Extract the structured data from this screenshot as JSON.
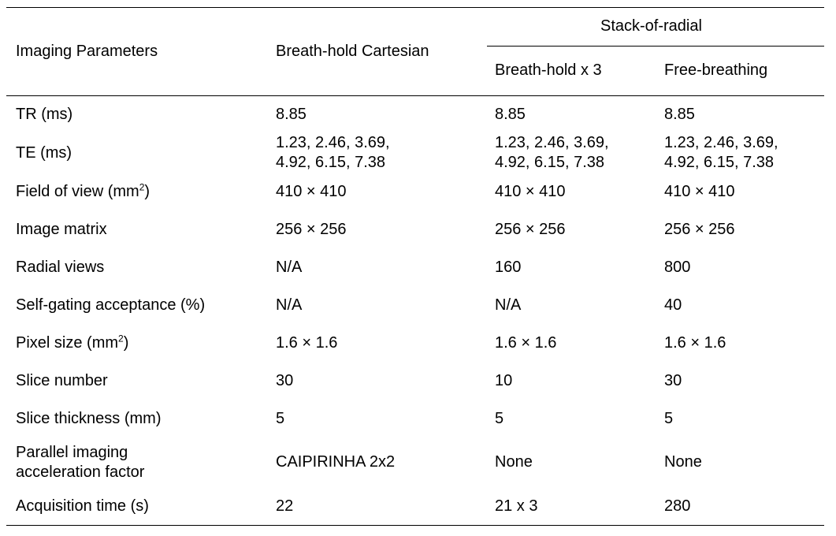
{
  "table": {
    "header": {
      "col0": "Imaging Parameters",
      "col1": "Breath-hold Cartesian",
      "group": "Stack-of-radial",
      "col2": "Breath-hold x 3",
      "col3": "Free-breathing"
    },
    "rows": [
      {
        "param": "TR (ms)",
        "c1": "8.85",
        "c2": "8.85",
        "c3": "8.85"
      },
      {
        "param": "TE (ms)",
        "c1a": "1.23, 2.46, 3.69,",
        "c1b": "4.92, 6.15, 7.38",
        "c2a": "1.23, 2.46, 3.69,",
        "c2b": "4.92, 6.15, 7.38",
        "c3a": "1.23, 2.46, 3.69,",
        "c3b": "4.92, 6.15, 7.38"
      },
      {
        "param": "Field of view (mm",
        "sup": "2",
        "paramEnd": ")",
        "c1": "410 × 410",
        "c2": "410 × 410",
        "c3": "410 × 410"
      },
      {
        "param": "Image matrix",
        "c1": "256 × 256",
        "c2": "256 × 256",
        "c3": "256 × 256"
      },
      {
        "param": "Radial views",
        "c1": "N/A",
        "c2": "160",
        "c3": "800"
      },
      {
        "param": "Self-gating acceptance (%)",
        "c1": "N/A",
        "c2": "N/A",
        "c3": "40"
      },
      {
        "param": "Pixel size (mm",
        "sup": "2",
        "paramEnd": ")",
        "c1": "1.6 × 1.6",
        "c2": "1.6 × 1.6",
        "c3": "1.6 × 1.6"
      },
      {
        "param": "Slice number",
        "c1": "30",
        "c2": "10",
        "c3": "30"
      },
      {
        "param": "Slice thickness (mm)",
        "c1": "5",
        "c2": "5",
        "c3": "5"
      },
      {
        "param_a": "Parallel imaging",
        "param_b": "acceleration factor",
        "c1": "CAIPIRINHA 2x2",
        "c2": "None",
        "c3": "None"
      },
      {
        "param": "Acquisition time (s)",
        "c1": "22",
        "c2": "21 x 3",
        "c3": "280"
      }
    ]
  }
}
